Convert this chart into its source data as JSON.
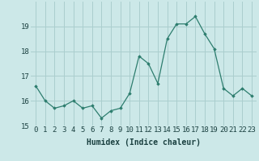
{
  "x": [
    0,
    1,
    2,
    3,
    4,
    5,
    6,
    7,
    8,
    9,
    10,
    11,
    12,
    13,
    14,
    15,
    16,
    17,
    18,
    19,
    20,
    21,
    22,
    23
  ],
  "y": [
    16.6,
    16.0,
    15.7,
    15.8,
    16.0,
    15.7,
    15.8,
    15.3,
    15.6,
    15.7,
    16.3,
    17.8,
    17.5,
    16.7,
    18.5,
    19.1,
    19.1,
    19.4,
    18.7,
    18.1,
    16.5,
    16.2,
    16.5,
    16.2
  ],
  "xlabel": "Humidex (Indice chaleur)",
  "ylim": [
    15,
    20
  ],
  "yticks": [
    15,
    16,
    17,
    18,
    19
  ],
  "xticks": [
    0,
    1,
    2,
    3,
    4,
    5,
    6,
    7,
    8,
    9,
    10,
    11,
    12,
    13,
    14,
    15,
    16,
    17,
    18,
    19,
    20,
    21,
    22,
    23
  ],
  "line_color": "#2d7d6e",
  "marker": "D",
  "marker_size": 1.8,
  "bg_color": "#cce8e8",
  "grid_color": "#aacece",
  "font_color": "#1a4040",
  "xlabel_fontsize": 7,
  "tick_fontsize": 6.5
}
